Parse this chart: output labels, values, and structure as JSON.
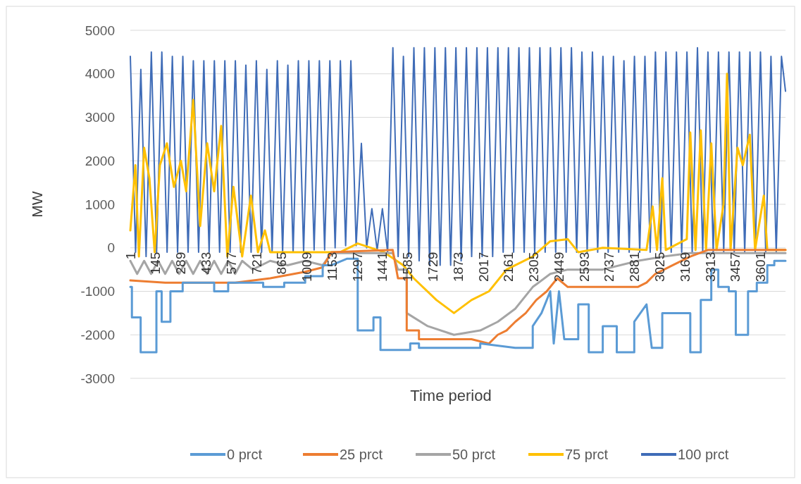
{
  "chart_data": {
    "type": "line",
    "xlabel": "Time period",
    "ylabel": "MW",
    "xlim": [
      1,
      3744
    ],
    "xticks": [
      1,
      145,
      289,
      433,
      577,
      721,
      865,
      1009,
      1153,
      1297,
      1441,
      1585,
      1729,
      1873,
      2017,
      2161,
      2305,
      2449,
      2593,
      2737,
      2881,
      3025,
      3169,
      3313,
      3457,
      3601
    ],
    "ylim": [
      -3000,
      5000
    ],
    "yticks": [
      -3000,
      -2000,
      -1000,
      0,
      1000,
      2000,
      3000,
      4000,
      5000
    ],
    "grid": "y",
    "legend": "bottom",
    "series": [
      {
        "name": "0 prct",
        "color": "#5b9bd5",
        "x": [
          1,
          10,
          10,
          60,
          60,
          150,
          150,
          180,
          180,
          230,
          230,
          300,
          300,
          480,
          480,
          560,
          560,
          760,
          760,
          880,
          880,
          1000,
          1000,
          1100,
          1100,
          1150,
          1240,
          1300,
          1300,
          1390,
          1390,
          1430,
          1430,
          1600,
          1600,
          1650,
          1650,
          2000,
          2000,
          2200,
          2300,
          2300,
          2350,
          2400,
          2420,
          2450,
          2480,
          2560,
          2560,
          2620,
          2620,
          2700,
          2700,
          2780,
          2780,
          2880,
          2880,
          2950,
          2980,
          3040,
          3040,
          3200,
          3200,
          3260,
          3260,
          3320,
          3320,
          3360,
          3360,
          3420,
          3420,
          3460,
          3460,
          3530,
          3530,
          3580,
          3580,
          3640,
          3640,
          3680,
          3680,
          3744
        ],
        "values": [
          -900,
          -900,
          -1600,
          -1600,
          -2400,
          -2400,
          -1000,
          -1000,
          -1700,
          -1700,
          -1000,
          -1000,
          -800,
          -800,
          -1000,
          -1000,
          -800,
          -800,
          -900,
          -900,
          -800,
          -800,
          -650,
          -650,
          -400,
          -400,
          -250,
          -250,
          -1900,
          -1900,
          -1600,
          -1600,
          -2350,
          -2350,
          -2200,
          -2200,
          -2300,
          -2300,
          -2200,
          -2300,
          -2300,
          -1800,
          -1500,
          -1000,
          -2200,
          -1000,
          -2100,
          -2100,
          -1300,
          -1300,
          -2400,
          -2400,
          -1800,
          -1800,
          -2400,
          -2400,
          -1700,
          -1300,
          -2300,
          -2300,
          -1500,
          -1500,
          -2400,
          -2400,
          -1200,
          -1200,
          -500,
          -500,
          -900,
          -900,
          -1000,
          -1000,
          -2000,
          -2000,
          -1000,
          -1000,
          -800,
          -800,
          -400,
          -400,
          -300,
          -300
        ]
      },
      {
        "name": "25 prct",
        "color": "#ed7d31",
        "x": [
          1,
          200,
          600,
          800,
          1000,
          1100,
          1150,
          1500,
          1530,
          1580,
          1580,
          1650,
          1650,
          1950,
          2050,
          2100,
          2150,
          2200,
          2260,
          2320,
          2380,
          2440,
          2500,
          2900,
          2950,
          3000,
          3100,
          3200,
          3300,
          3744
        ],
        "values": [
          -750,
          -800,
          -800,
          -700,
          -550,
          -450,
          -100,
          -50,
          -700,
          -700,
          -1900,
          -1900,
          -2100,
          -2100,
          -2200,
          -2000,
          -1900,
          -1700,
          -1500,
          -1200,
          -1000,
          -700,
          -900,
          -900,
          -800,
          -600,
          -400,
          -200,
          -50,
          -50
        ]
      },
      {
        "name": "50 prct",
        "color": "#a5a5a5",
        "x": [
          1,
          40,
          80,
          120,
          160,
          200,
          240,
          280,
          320,
          360,
          400,
          440,
          480,
          520,
          560,
          600,
          640,
          700,
          800,
          900,
          1000,
          1100,
          1150,
          1500,
          1530,
          1580,
          1580,
          1700,
          1850,
          2000,
          2100,
          2200,
          2300,
          2400,
          2500,
          2700,
          2900,
          3050,
          3200,
          3744
        ],
        "values": [
          -300,
          -600,
          -300,
          -600,
          -300,
          -600,
          -300,
          -600,
          -300,
          -600,
          -300,
          -600,
          -300,
          -600,
          -300,
          -600,
          -300,
          -500,
          -300,
          -400,
          -300,
          -400,
          -120,
          -120,
          -500,
          -500,
          -1500,
          -1800,
          -2000,
          -1900,
          -1700,
          -1400,
          -900,
          -600,
          -500,
          -500,
          -300,
          -200,
          -120,
          -120
        ]
      },
      {
        "name": "75 prct",
        "color": "#ffc000",
        "x": [
          1,
          30,
          50,
          80,
          110,
          140,
          170,
          210,
          250,
          290,
          320,
          360,
          400,
          440,
          480,
          520,
          555,
          590,
          640,
          690,
          730,
          770,
          800,
          1200,
          1300,
          1450,
          1560,
          1620,
          1750,
          1850,
          1950,
          2050,
          2150,
          2300,
          2400,
          2500,
          2560,
          2700,
          2950,
          2985,
          3010,
          3040,
          3060,
          3180,
          3200,
          3230,
          3260,
          3290,
          3320,
          3350,
          3390,
          3410,
          3430,
          3470,
          3500,
          3540,
          3570,
          3620,
          3640,
          3744
        ],
        "values": [
          400,
          1900,
          -200,
          2300,
          1600,
          -100,
          1900,
          2400,
          1400,
          2000,
          1300,
          3400,
          500,
          2400,
          1300,
          2800,
          -200,
          1400,
          -200,
          1200,
          -100,
          400,
          -100,
          -100,
          100,
          -100,
          -400,
          -700,
          -1200,
          -1500,
          -1200,
          -1000,
          -500,
          -200,
          150,
          200,
          -100,
          0,
          -50,
          950,
          -50,
          1600,
          -50,
          200,
          2650,
          -50,
          2700,
          -50,
          2400,
          -50,
          1000,
          4000,
          -50,
          2300,
          1900,
          2600,
          -50,
          1200,
          -50,
          -50
        ]
      },
      {
        "name": "100 prct",
        "color": "#3f6cb7",
        "x": [
          1,
          31,
          61,
          91,
          121,
          151,
          181,
          211,
          241,
          271,
          301,
          331,
          361,
          391,
          421,
          451,
          481,
          511,
          541,
          571,
          601,
          631,
          661,
          691,
          721,
          751,
          781,
          811,
          841,
          871,
          901,
          931,
          961,
          991,
          1021,
          1051,
          1081,
          1111,
          1141,
          1171,
          1201,
          1231,
          1261,
          1291,
          1321,
          1351,
          1381,
          1411,
          1441,
          1471,
          1501,
          1531,
          1561,
          1591,
          1621,
          1651,
          1681,
          1711,
          1741,
          1771,
          1801,
          1831,
          1861,
          1891,
          1921,
          1951,
          1981,
          2011,
          2041,
          2071,
          2101,
          2131,
          2161,
          2191,
          2221,
          2251,
          2281,
          2311,
          2341,
          2371,
          2401,
          2431,
          2461,
          2491,
          2521,
          2551,
          2581,
          2611,
          2641,
          2671,
          2701,
          2731,
          2761,
          2791,
          2821,
          2851,
          2881,
          2911,
          2941,
          2971,
          3001,
          3031,
          3061,
          3091,
          3121,
          3151,
          3181,
          3211,
          3241,
          3271,
          3301,
          3331,
          3361,
          3391,
          3421,
          3451,
          3481,
          3511,
          3541,
          3571,
          3601,
          3631,
          3661,
          3691,
          3721,
          3744
        ],
        "values": [
          4400,
          -100,
          4100,
          -200,
          4500,
          -100,
          4500,
          -100,
          4400,
          -100,
          4400,
          -100,
          4300,
          -100,
          4300,
          -100,
          4300,
          -100,
          4300,
          -100,
          4300,
          -100,
          4200,
          -100,
          4300,
          -100,
          4100,
          -100,
          4300,
          -100,
          4200,
          -100,
          4300,
          -100,
          4300,
          -50,
          4300,
          -50,
          4300,
          0,
          4300,
          50,
          4300,
          50,
          2400,
          0,
          900,
          -50,
          900,
          -100,
          4600,
          -200,
          4400,
          -200,
          4600,
          -300,
          4600,
          -400,
          4600,
          -400,
          4600,
          -400,
          4600,
          -300,
          4600,
          -200,
          4600,
          -200,
          4600,
          -200,
          4600,
          -100,
          4600,
          -100,
          4600,
          -100,
          4600,
          -100,
          4600,
          -100,
          4600,
          -100,
          4600,
          -100,
          4600,
          -100,
          4500,
          -100,
          4500,
          -100,
          4400,
          -100,
          4400,
          -100,
          4300,
          -100,
          4400,
          -100,
          4400,
          -100,
          4500,
          -100,
          4500,
          -100,
          4500,
          -100,
          4500,
          -100,
          4600,
          -100,
          4500,
          -100,
          4500,
          -100,
          4500,
          -100,
          4500,
          -100,
          4500,
          -100,
          4500,
          -100,
          4400,
          -100,
          4400,
          3600
        ]
      }
    ]
  }
}
